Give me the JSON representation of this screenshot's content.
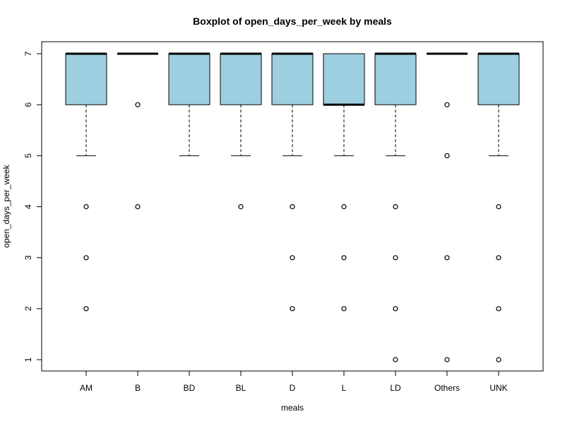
{
  "chart_data": {
    "type": "boxplot",
    "title": "Boxplot of open_days_per_week by meals",
    "xlabel": "meals",
    "ylabel": "open_days_per_week",
    "ylim": [
      0.8,
      7.2
    ],
    "yticks": [
      1,
      2,
      3,
      4,
      5,
      6,
      7
    ],
    "box_color": "#9ecfe0",
    "categories": [
      "AM",
      "B",
      "BD",
      "BL",
      "D",
      "L",
      "LD",
      "Others",
      "UNK"
    ],
    "boxes": [
      {
        "category": "AM",
        "whisker_low": 5,
        "q1": 6,
        "median": 7,
        "q3": 7,
        "whisker_high": 7,
        "outliers": [
          4,
          3,
          2
        ]
      },
      {
        "category": "B",
        "whisker_low": 7,
        "q1": 7,
        "median": 7,
        "q3": 7,
        "whisker_high": 7,
        "outliers": [
          6,
          4
        ]
      },
      {
        "category": "BD",
        "whisker_low": 5,
        "q1": 6,
        "median": 7,
        "q3": 7,
        "whisker_high": 7,
        "outliers": []
      },
      {
        "category": "BL",
        "whisker_low": 5,
        "q1": 6,
        "median": 7,
        "q3": 7,
        "whisker_high": 7,
        "outliers": [
          4
        ]
      },
      {
        "category": "D",
        "whisker_low": 5,
        "q1": 6,
        "median": 7,
        "q3": 7,
        "whisker_high": 7,
        "outliers": [
          4,
          3,
          2
        ]
      },
      {
        "category": "L",
        "whisker_low": 5,
        "q1": 6,
        "median": 6,
        "q3": 7,
        "whisker_high": 7,
        "outliers": [
          4,
          3,
          2
        ]
      },
      {
        "category": "LD",
        "whisker_low": 5,
        "q1": 6,
        "median": 7,
        "q3": 7,
        "whisker_high": 7,
        "outliers": [
          4,
          3,
          2,
          1
        ]
      },
      {
        "category": "Others",
        "whisker_low": 7,
        "q1": 7,
        "median": 7,
        "q3": 7,
        "whisker_high": 7,
        "outliers": [
          6,
          5,
          3,
          1
        ]
      },
      {
        "category": "UNK",
        "whisker_low": 5,
        "q1": 6,
        "median": 7,
        "q3": 7,
        "whisker_high": 7,
        "outliers": [
          4,
          3,
          2,
          1
        ]
      }
    ]
  }
}
